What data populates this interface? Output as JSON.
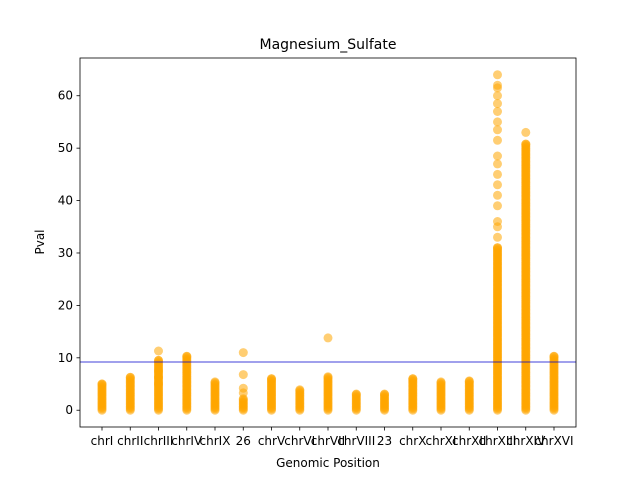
{
  "chart_data": {
    "type": "scatter",
    "title": "Magnesium_Sulfate",
    "xlabel": "Genomic Position",
    "ylabel": "Pval",
    "ylim": [
      -3.2,
      67.2
    ],
    "yticks": [
      0,
      10,
      20,
      30,
      40,
      50,
      60
    ],
    "threshold": 9.2,
    "grid": false,
    "colors": {
      "points": "#ffa500",
      "threshold": "#0000cd",
      "axes": "#000000"
    },
    "categories": [
      "chrI",
      "chrII",
      "chrIII",
      "chrIV",
      "chrIX",
      "26",
      "chrV",
      "chrVI",
      "chrVII",
      "chrVIII",
      "23",
      "chrX",
      "chrXI",
      "chrXII",
      "chrXIII",
      "chrXIV",
      "chrXVI"
    ],
    "series": [
      {
        "category": "chrI",
        "max": 5.0,
        "extras": []
      },
      {
        "category": "chrII",
        "max": 6.3,
        "extras": []
      },
      {
        "category": "chrIII",
        "max": 9.5,
        "extras": [
          11.3,
          7.5,
          6.3,
          5.0
        ]
      },
      {
        "category": "chrIV",
        "max": 10.3,
        "extras": []
      },
      {
        "category": "chrIX",
        "max": 5.4,
        "extras": []
      },
      {
        "category": "26",
        "max": 2.2,
        "extras": [
          11.0,
          6.8,
          4.2,
          3.3
        ]
      },
      {
        "category": "chrV",
        "max": 6.0,
        "extras": []
      },
      {
        "category": "chrVI",
        "max": 3.9,
        "extras": []
      },
      {
        "category": "chrVII",
        "max": 6.4,
        "extras": [
          13.8
        ]
      },
      {
        "category": "chrVIII",
        "max": 3.1,
        "extras": []
      },
      {
        "category": "23",
        "max": 3.1,
        "extras": []
      },
      {
        "category": "chrX",
        "max": 6.0,
        "extras": []
      },
      {
        "category": "chrXI",
        "max": 5.4,
        "extras": []
      },
      {
        "category": "chrXII",
        "max": 5.6,
        "extras": []
      },
      {
        "category": "chrXIII",
        "max": 31.0,
        "extras": [
          35.0,
          36.0,
          39.0,
          41.0,
          43.0,
          45.0,
          47.0,
          48.5,
          51.5,
          53.5,
          55.0,
          57.0,
          58.5,
          60.0,
          61.5,
          62.0,
          64.0,
          33.0
        ]
      },
      {
        "category": "chrXIV",
        "max": 50.8,
        "extras": [
          53.0
        ]
      },
      {
        "category": "chrXVI",
        "max": 10.3,
        "extras": []
      }
    ]
  }
}
